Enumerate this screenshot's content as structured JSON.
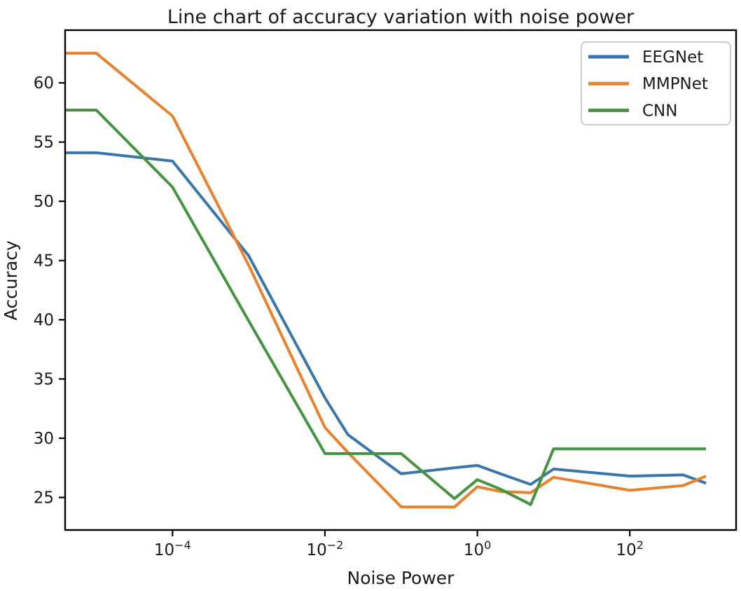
{
  "title": "Line chart of accuracy variation with noise power",
  "chart_data": {
    "type": "line",
    "title": "Line chart of accuracy variation with noise power",
    "xlabel": "Noise Power",
    "ylabel": "Accuracy",
    "x_scale": "log",
    "grid": false,
    "legend_position": "upper right",
    "xlim": [
      3.9e-06,
      2480
    ],
    "ylim": [
      22.25,
      64.45
    ],
    "x_tick_exponents": [
      -4,
      -2,
      0,
      2
    ],
    "x_tick_labels": [
      "10^-4",
      "10^-2",
      "10^0",
      "10^2"
    ],
    "y_ticks": [
      25,
      30,
      35,
      40,
      45,
      50,
      55,
      60
    ],
    "x": [
      3.9e-06,
      1e-05,
      0.0001,
      0.001,
      0.01,
      0.02,
      0.1,
      0.5,
      1,
      2,
      5,
      10,
      100,
      500,
      1000
    ],
    "series": [
      {
        "name": "EEGNet",
        "color": "#3a76ab",
        "values": [
          54.1,
          54.1,
          53.4,
          45.4,
          33.4,
          30.3,
          27.0,
          27.5,
          27.7,
          27.0,
          26.1,
          27.4,
          26.8,
          26.9,
          26.2
        ]
      },
      {
        "name": "MMPNet",
        "color": "#e9822f",
        "values": [
          62.5,
          62.5,
          57.2,
          44.6,
          30.9,
          28.8,
          24.2,
          24.2,
          25.9,
          25.5,
          25.4,
          26.7,
          25.6,
          26.0,
          26.8
        ]
      },
      {
        "name": "CNN",
        "color": "#459440",
        "values": [
          57.7,
          57.7,
          51.2,
          39.9,
          28.7,
          28.7,
          28.7,
          24.9,
          26.5,
          25.7,
          24.4,
          29.1,
          29.1,
          29.1,
          29.1
        ]
      }
    ],
    "axis_color": "#000000",
    "legend_border_color": "#cccccc",
    "legend_background": "#ffffff"
  }
}
